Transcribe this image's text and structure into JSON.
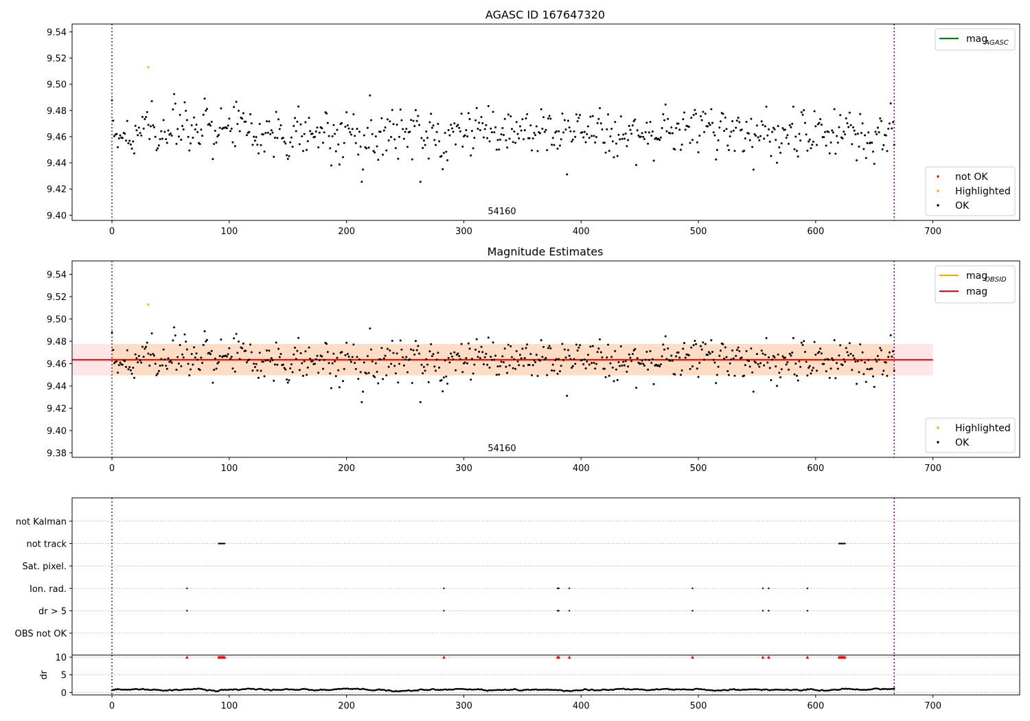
{
  "chart_data": [
    {
      "type": "scatter",
      "title": "AGASC ID 167647320",
      "annotation": "54160",
      "xlabel": "",
      "ylabel": "",
      "xlim": [
        -34,
        774
      ],
      "ylim": [
        9.396,
        9.546
      ],
      "xticks": [
        "0",
        "100",
        "200",
        "300",
        "400",
        "500",
        "600",
        "700"
      ],
      "yticks": [
        "9.40",
        "9.42",
        "9.44",
        "9.46",
        "9.48",
        "9.50",
        "9.52",
        "9.54"
      ],
      "vlines": [
        0,
        667
      ],
      "legend_lines": [
        {
          "main": "mag",
          "sub": "AGASC",
          "color": "#008000"
        }
      ],
      "legend_points": [
        {
          "name": "not OK",
          "color": "#ff0000"
        },
        {
          "name": "Highlighted",
          "color": "#ffa500"
        },
        {
          "name": "OK",
          "color": "#000000"
        }
      ],
      "highlighted": [
        {
          "x": 31,
          "y": 9.513
        }
      ],
      "series": {
        "name": "OK",
        "n": 668,
        "mean": 9.4635,
        "std": 0.0125,
        "min": 9.4255,
        "max": 9.5015
      }
    },
    {
      "type": "scatter",
      "title": "Magnitude Estimates",
      "annotation": "54160",
      "xlabel": "",
      "ylabel": "",
      "xlim": [
        -34,
        774
      ],
      "ylim": [
        9.376,
        9.552
      ],
      "xticks": [
        "0",
        "100",
        "200",
        "300",
        "400",
        "500",
        "600",
        "700"
      ],
      "yticks": [
        "9.38",
        "9.40",
        "9.42",
        "9.44",
        "9.46",
        "9.48",
        "9.50",
        "9.52",
        "9.54"
      ],
      "vlines": [
        0,
        667
      ],
      "mag_line": 9.4635,
      "mag_obsid_line": 9.4635,
      "band_mag": [
        9.4495,
        9.4775
      ],
      "band_mag_obsid": [
        9.4495,
        9.4775
      ],
      "band_mag_x": [
        -34,
        700
      ],
      "band_mag_obsid_x": [
        0,
        667
      ],
      "legend_lines": [
        {
          "main": "mag",
          "sub": "OBSID",
          "color": "#ffa500"
        },
        {
          "main": "mag",
          "sub": "",
          "color": "#ff0000"
        }
      ],
      "legend_points": [
        {
          "name": "Highlighted",
          "color": "#ffa500"
        },
        {
          "name": "OK",
          "color": "#000000"
        }
      ],
      "highlighted": [
        {
          "x": 31,
          "y": 9.513
        }
      ]
    },
    {
      "type": "scatter",
      "title": "",
      "xlabel": "",
      "ylabel": "",
      "categories": [
        "not Kalman",
        "not track",
        "Sat. pixel.",
        "Ion. rad.",
        "dr > 5",
        "OBS not OK"
      ],
      "flags": {
        "not track": [
          91,
          92,
          93,
          94,
          95,
          96,
          620,
          621,
          622,
          623,
          624,
          625
        ],
        "Ion. rad.": [
          64,
          283,
          380,
          381,
          390,
          495,
          555,
          560,
          593
        ],
        "dr > 5": [
          64,
          283,
          380,
          381,
          390,
          495,
          555,
          560,
          593
        ]
      },
      "vlines": [
        0,
        667
      ]
    },
    {
      "type": "scatter",
      "title": "",
      "xlabel": "",
      "ylabel": "dr",
      "xlim": [
        -34,
        774
      ],
      "ylim": [
        -0.7,
        10.6
      ],
      "xticks": [
        "0",
        "100",
        "200",
        "300",
        "400",
        "500",
        "600",
        "700"
      ],
      "yticks": [
        "0",
        "5",
        "10"
      ],
      "dr_over_5_at": 10,
      "dr_over_5_x": [
        64,
        91,
        92,
        93,
        94,
        95,
        96,
        283,
        380,
        381,
        390,
        495,
        555,
        560,
        593,
        620,
        621,
        622,
        623,
        624,
        625
      ],
      "vlines": [
        0,
        667
      ]
    }
  ]
}
